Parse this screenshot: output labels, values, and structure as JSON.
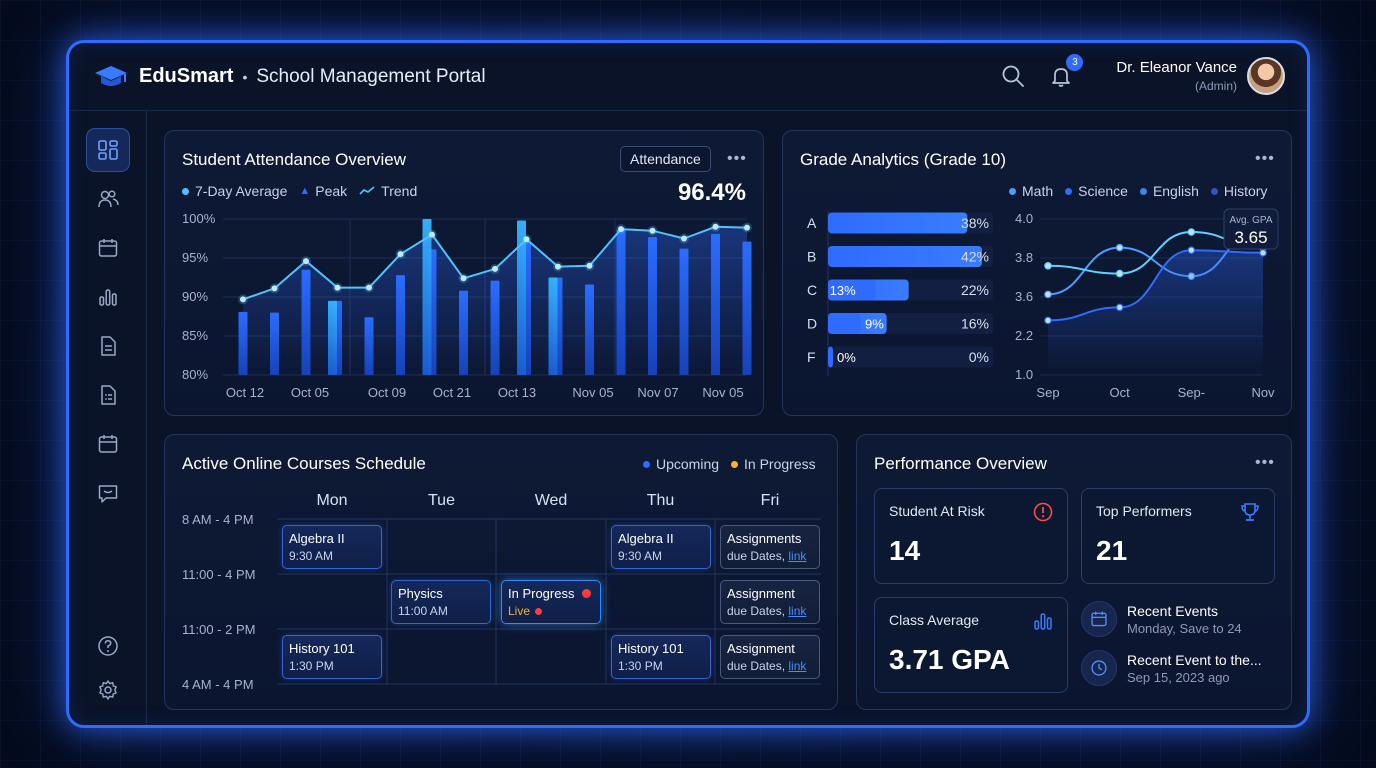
{
  "app": {
    "name": "EduSmart",
    "separator": "•",
    "subtitle": "School Management Portal",
    "notification_count": "3",
    "user_name": "Dr. Eleanor Vance",
    "user_role": "(Admin)"
  },
  "sidebar": {
    "items": [
      {
        "icon": "dashboard-icon",
        "active": true
      },
      {
        "icon": "users-icon",
        "active": false
      },
      {
        "icon": "calendar-icon",
        "active": false
      },
      {
        "icon": "bar-chart-icon",
        "active": false
      },
      {
        "icon": "document-icon",
        "active": false
      },
      {
        "icon": "report-icon",
        "active": false
      },
      {
        "icon": "schedule-icon",
        "active": false
      },
      {
        "icon": "message-icon",
        "active": false
      }
    ],
    "bottom": [
      {
        "icon": "help-icon"
      },
      {
        "icon": "settings-icon"
      }
    ]
  },
  "attendance": {
    "title": "Student Attendance Overview",
    "filter_label": "Attendance",
    "more": "•••",
    "value": "96.4%",
    "legend": {
      "avg": "7-Day Average",
      "peak": "Peak",
      "trend": "Trend"
    },
    "chart_data": {
      "type": "bar",
      "y_ticks": [
        "100%",
        "95%",
        "90%",
        "85%",
        "80%"
      ],
      "ylim": [
        80,
        100
      ],
      "x_labels": [
        "Oct 12",
        "Oct 05",
        "Oct 09",
        "Oct 21",
        "Oct 13",
        "Nov 05",
        "Nov 07",
        "Nov 05"
      ],
      "bars": [
        88.1,
        88.0,
        93.5,
        89.5,
        87.4,
        92.8,
        96.1,
        90.8,
        92.1,
        97.1,
        92.5,
        91.6,
        98.6,
        97.7,
        96.2,
        98.1,
        97.1
      ],
      "peak_bars": [
        null,
        null,
        null,
        89.5,
        null,
        null,
        100,
        null,
        null,
        99.8,
        92.5,
        null,
        null,
        null,
        null,
        null,
        null
      ],
      "trend": [
        89.7,
        91.1,
        94.6,
        91.2,
        91.2,
        95.5,
        98.0,
        92.4,
        93.6,
        97.4,
        93.9,
        94.0,
        98.7,
        98.5,
        97.5,
        99.0,
        98.9
      ]
    }
  },
  "grades": {
    "title": "Grade Analytics (Grade 10)",
    "more": "•••",
    "legend": [
      "Math",
      "Science",
      "English",
      "History"
    ],
    "legend_colors": [
      "#4f9bff",
      "#2f6bff",
      "#3d86e6",
      "#3553c8"
    ],
    "chart_data": {
      "type": "bar",
      "categories": [
        "A",
        "B",
        "C",
        "D",
        "F"
      ],
      "values": [
        38,
        42,
        22,
        16,
        0
      ],
      "value_labels": [
        "38%",
        "42%",
        "22%",
        "16%",
        "0%"
      ],
      "inner_values": [
        null,
        null,
        13,
        9,
        0
      ],
      "inner_labels": [
        "",
        "",
        "13%",
        "9%",
        "0%"
      ],
      "xmax": 45
    },
    "gpa_chart": {
      "type": "line",
      "y_ticks": [
        "4.0",
        "3.8",
        "3.6",
        "2.2",
        "1.0"
      ],
      "x_labels": [
        "Sep",
        "Oct",
        "Sep-",
        "Nov"
      ],
      "series": [
        {
          "values": [
            2.55,
            3.45,
            2.9,
            3.85
          ]
        },
        {
          "values": [
            3.1,
            2.95,
            3.75,
            3.45
          ]
        },
        {
          "values": [
            2.05,
            2.3,
            3.4,
            3.35
          ]
        }
      ],
      "badge_label": "Avg. GPA",
      "badge_value": "3.65"
    }
  },
  "schedule": {
    "title": "Active Online Courses Schedule",
    "legend_upcoming": "Upcoming",
    "legend_progress": "In Progress",
    "days": [
      "Mon",
      "Tue",
      "Wed",
      "Thu",
      "Fri"
    ],
    "times": [
      "8 AM - 4 PM",
      "11:00 - 4 PM",
      "11:00 - 2 PM",
      "4 AM - 4 PM"
    ],
    "events": [
      {
        "title": "Algebra II",
        "sub": "9:30 AM"
      },
      {
        "title": "Algebra II",
        "sub": "9:30 AM"
      },
      {
        "title": "Assignments",
        "sub": "due Dates,",
        "link": "link"
      },
      {
        "title": "Physics",
        "sub": "11:00 AM"
      },
      {
        "title": "In Progress",
        "sub": "Live"
      },
      {
        "title": "Assignment",
        "sub": "due Dates,",
        "link": "link"
      },
      {
        "title": "History 101",
        "sub": "1:30 PM"
      },
      {
        "title": "History 101",
        "sub": "1:30 PM"
      },
      {
        "title": "Assignment",
        "sub": "due Dates,",
        "link": "link"
      }
    ]
  },
  "performance": {
    "title": "Performance Overview",
    "more": "•••",
    "at_risk_label": "Student At Risk",
    "at_risk_value": "14",
    "top_label": "Top Performers",
    "top_value": "21",
    "avg_label": "Class Average",
    "avg_value": "3.71 GPA",
    "recent": [
      {
        "title": "Recent Events",
        "sub": "Monday, Save to 24"
      },
      {
        "title": "Recent Event to the...",
        "sub": "Sep 15, 2023 ago"
      }
    ]
  }
}
